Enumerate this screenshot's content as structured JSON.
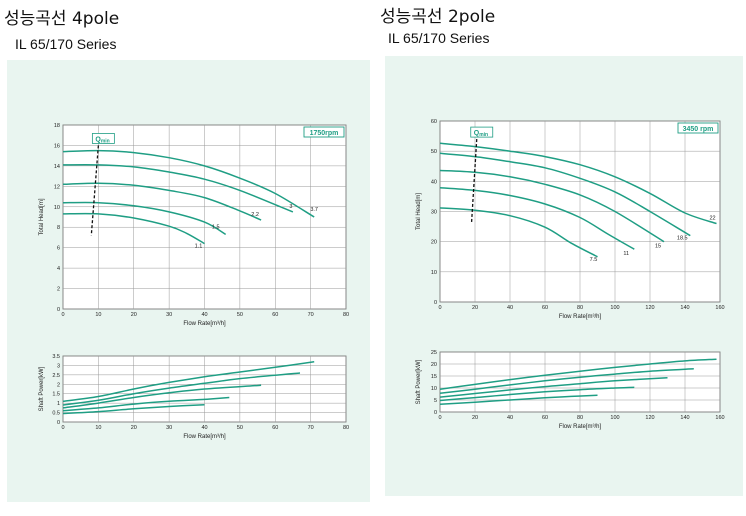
{
  "panels": [
    {
      "title": "성능곡선 4pole",
      "subtitle": "IL 65/170 Series",
      "rpm_label": "1750rpm",
      "qmin_label": "Q",
      "qmin_sub": "min"
    },
    {
      "title": "성능곡선 2pole",
      "subtitle": "IL 65/170 Series",
      "rpm_label": "3450 rpm",
      "qmin_label": "Q",
      "qmin_sub": "min"
    }
  ],
  "colors": {
    "curve": "#1f9e84",
    "panel_bg": "#e9f5f0",
    "grid": "#999999",
    "rpm_box": "#1f9e84"
  },
  "chart_data": [
    {
      "type": "line",
      "chart": "head",
      "xlabel": "Flow Rate[m³/h]",
      "ylabel": "Total Head[m]",
      "xlim": [
        0,
        80
      ],
      "ylim": [
        0,
        18
      ],
      "x_ticks": [
        0,
        10,
        20,
        30,
        40,
        50,
        60,
        70,
        80
      ],
      "y_ticks": [
        0,
        2,
        4,
        6,
        8,
        10,
        12,
        14,
        16,
        18
      ],
      "grid": true,
      "qmin": [
        [
          10,
          16
        ],
        [
          8,
          7.2
        ]
      ],
      "series": [
        {
          "name": "3.7",
          "points": [
            [
              0,
              15.4
            ],
            [
              10,
              15.5
            ],
            [
              20,
              15.3
            ],
            [
              30,
              14.8
            ],
            [
              40,
              14.0
            ],
            [
              50,
              12.8
            ],
            [
              60,
              11.3
            ],
            [
              71,
              9.0
            ]
          ]
        },
        {
          "name": "3",
          "points": [
            [
              0,
              14.1
            ],
            [
              10,
              14.1
            ],
            [
              20,
              13.9
            ],
            [
              30,
              13.4
            ],
            [
              40,
              12.7
            ],
            [
              50,
              11.6
            ],
            [
              60,
              10.2
            ],
            [
              65,
              9.5
            ]
          ]
        },
        {
          "name": "2.2",
          "points": [
            [
              0,
              12.2
            ],
            [
              10,
              12.3
            ],
            [
              20,
              12.1
            ],
            [
              30,
              11.6
            ],
            [
              40,
              10.9
            ],
            [
              50,
              9.6
            ],
            [
              56,
              8.7
            ]
          ]
        },
        {
          "name": "1.5",
          "points": [
            [
              0,
              10.4
            ],
            [
              10,
              10.4
            ],
            [
              20,
              10.1
            ],
            [
              30,
              9.5
            ],
            [
              40,
              8.5
            ],
            [
              46,
              7.3
            ]
          ]
        },
        {
          "name": "1.1",
          "points": [
            [
              0,
              9.3
            ],
            [
              10,
              9.3
            ],
            [
              20,
              8.9
            ],
            [
              30,
              8.1
            ],
            [
              35,
              7.4
            ],
            [
              40,
              6.4
            ]
          ]
        }
      ]
    },
    {
      "type": "line",
      "chart": "power",
      "xlabel": "Flow Rate[m³/h]",
      "ylabel": "Shaft Power[kW]",
      "xlim": [
        0,
        80
      ],
      "ylim": [
        0,
        3.5
      ],
      "x_ticks": [
        0,
        10,
        20,
        30,
        40,
        50,
        60,
        70,
        80
      ],
      "y_ticks": [
        0,
        0.5,
        1.0,
        1.5,
        2.0,
        2.5,
        3.0,
        3.5
      ],
      "grid": true,
      "series": [
        {
          "name": "3.7",
          "points": [
            [
              0,
              1.1
            ],
            [
              10,
              1.35
            ],
            [
              20,
              1.75
            ],
            [
              30,
              2.1
            ],
            [
              40,
              2.4
            ],
            [
              50,
              2.65
            ],
            [
              60,
              2.9
            ],
            [
              71,
              3.2
            ]
          ]
        },
        {
          "name": "3",
          "points": [
            [
              0,
              0.9
            ],
            [
              10,
              1.15
            ],
            [
              20,
              1.5
            ],
            [
              30,
              1.8
            ],
            [
              40,
              2.05
            ],
            [
              50,
              2.3
            ],
            [
              67,
              2.6
            ]
          ]
        },
        {
          "name": "2.2",
          "points": [
            [
              0,
              0.75
            ],
            [
              10,
              1.0
            ],
            [
              20,
              1.3
            ],
            [
              30,
              1.55
            ],
            [
              40,
              1.75
            ],
            [
              56,
              1.95
            ]
          ]
        },
        {
          "name": "1.5",
          "points": [
            [
              0,
              0.6
            ],
            [
              10,
              0.75
            ],
            [
              20,
              0.95
            ],
            [
              30,
              1.1
            ],
            [
              40,
              1.2
            ],
            [
              47,
              1.3
            ]
          ]
        },
        {
          "name": "1.1",
          "points": [
            [
              0,
              0.45
            ],
            [
              10,
              0.55
            ],
            [
              20,
              0.7
            ],
            [
              30,
              0.82
            ],
            [
              40,
              0.92
            ]
          ]
        }
      ]
    },
    {
      "type": "line",
      "chart": "head",
      "xlabel": "Flow Rate[m³/h]",
      "ylabel": "Total Head[m]",
      "xlim": [
        0,
        160
      ],
      "ylim": [
        0,
        60
      ],
      "x_ticks": [
        0,
        20,
        40,
        60,
        80,
        100,
        120,
        140,
        160
      ],
      "y_ticks": [
        0,
        10,
        20,
        30,
        40,
        50,
        60
      ],
      "grid": true,
      "qmin": [
        [
          21,
          54
        ],
        [
          18,
          26
        ]
      ],
      "series": [
        {
          "name": "22",
          "points": [
            [
              0,
              52.6
            ],
            [
              20,
              51.5
            ],
            [
              40,
              50.0
            ],
            [
              60,
              48.2
            ],
            [
              80,
              45.5
            ],
            [
              100,
              41.5
            ],
            [
              120,
              36.0
            ],
            [
              140,
              29.5
            ],
            [
              158,
              26.0
            ]
          ]
        },
        {
          "name": "18.5",
          "points": [
            [
              0,
              49.3
            ],
            [
              20,
              48.2
            ],
            [
              40,
              46.5
            ],
            [
              60,
              44.5
            ],
            [
              80,
              41.0
            ],
            [
              100,
              36.5
            ],
            [
              120,
              30.0
            ],
            [
              143,
              22.0
            ]
          ]
        },
        {
          "name": "15",
          "points": [
            [
              0,
              43.6
            ],
            [
              20,
              43.0
            ],
            [
              40,
              41.5
            ],
            [
              60,
              39.0
            ],
            [
              80,
              35.5
            ],
            [
              100,
              30.0
            ],
            [
              128,
              20.0
            ]
          ]
        },
        {
          "name": "11",
          "points": [
            [
              0,
              37.9
            ],
            [
              20,
              37.0
            ],
            [
              40,
              35.3
            ],
            [
              60,
              32.5
            ],
            [
              80,
              28.0
            ],
            [
              96,
              22.5
            ],
            [
              111,
              17.5
            ]
          ]
        },
        {
          "name": "7.5",
          "points": [
            [
              0,
              31.2
            ],
            [
              20,
              30.4
            ],
            [
              40,
              28.6
            ],
            [
              60,
              24.8
            ],
            [
              75,
              19.5
            ],
            [
              90,
              15.0
            ]
          ]
        }
      ]
    },
    {
      "type": "line",
      "chart": "power",
      "xlabel": "Flow Rate[m³/h]",
      "ylabel": "Shaft Power[kW]",
      "xlim": [
        0,
        160
      ],
      "ylim": [
        0,
        25
      ],
      "x_ticks": [
        0,
        20,
        40,
        60,
        80,
        100,
        120,
        140,
        160
      ],
      "y_ticks": [
        0,
        5,
        10,
        15,
        20,
        25
      ],
      "grid": true,
      "series": [
        {
          "name": "22",
          "points": [
            [
              0,
              9.5
            ],
            [
              20,
              11.5
            ],
            [
              40,
              13.5
            ],
            [
              60,
              15.3
            ],
            [
              80,
              17.0
            ],
            [
              100,
              18.6
            ],
            [
              120,
              20.0
            ],
            [
              140,
              21.3
            ],
            [
              158,
              22.0
            ]
          ]
        },
        {
          "name": "18.5",
          "points": [
            [
              0,
              7.8
            ],
            [
              20,
              9.5
            ],
            [
              40,
              11.3
            ],
            [
              60,
              13.0
            ],
            [
              80,
              14.5
            ],
            [
              100,
              15.8
            ],
            [
              120,
              17.0
            ],
            [
              145,
              18.0
            ]
          ]
        },
        {
          "name": "15",
          "points": [
            [
              0,
              6.2
            ],
            [
              20,
              7.7
            ],
            [
              40,
              9.2
            ],
            [
              60,
              10.6
            ],
            [
              80,
              11.8
            ],
            [
              100,
              13.0
            ],
            [
              130,
              14.3
            ]
          ]
        },
        {
          "name": "11",
          "points": [
            [
              0,
              4.8
            ],
            [
              20,
              6.0
            ],
            [
              40,
              7.3
            ],
            [
              60,
              8.4
            ],
            [
              80,
              9.3
            ],
            [
              100,
              10.0
            ],
            [
              111,
              10.3
            ]
          ]
        },
        {
          "name": "7.5",
          "points": [
            [
              0,
              3.2
            ],
            [
              20,
              4.1
            ],
            [
              40,
              5.0
            ],
            [
              60,
              5.9
            ],
            [
              75,
              6.5
            ],
            [
              90,
              7.0
            ]
          ]
        }
      ]
    }
  ]
}
